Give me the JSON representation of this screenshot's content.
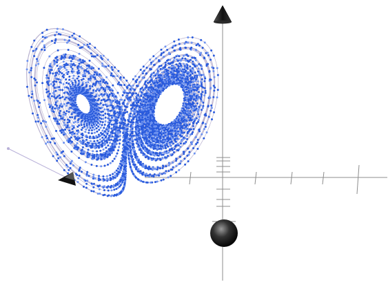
{
  "chart_data": {
    "type": "scatter",
    "projection": "3d-perspective",
    "system": "lorenz",
    "parameters": {
      "sigma": 10,
      "rho": 28,
      "beta": 2.6667
    },
    "initial_state": [
      1,
      1,
      1
    ],
    "axis_markers": {
      "vertical_axis_end": "cone",
      "vertical_axis_start": "sphere",
      "depth_axis_end": "cone"
    },
    "grid": false,
    "legend": "none",
    "colors": {
      "background": "#ffffff",
      "trajectory_line": "#a9a0c4",
      "trajectory_points": "#2a5bdc",
      "point_highlight": "#6e93f0",
      "axis_line": "#8c8c8c",
      "axis_marker": "#111111"
    }
  }
}
